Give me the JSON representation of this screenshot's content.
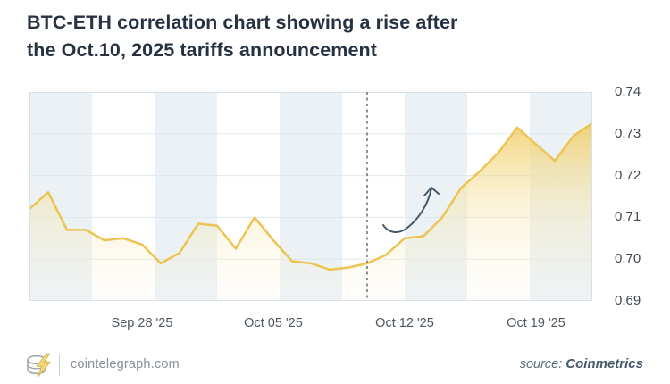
{
  "header": {
    "title_line1": "BTC-ETH correlation chart showing a rise after",
    "title_line2": "the Oct.10, 2025 tariffs announcement"
  },
  "chart_data": {
    "type": "area",
    "title": "BTC-ETH correlation chart showing a rise after the Oct.10, 2025 tariffs announcement",
    "series_name": "BTC-ETH correlation",
    "x": [
      "Sep 22 '25",
      "Sep 23 '25",
      "Sep 24 '25",
      "Sep 25 '25",
      "Sep 26 '25",
      "Sep 27 '25",
      "Sep 28 '25",
      "Sep 29 '25",
      "Sep 30 '25",
      "Oct 01 '25",
      "Oct 02 '25",
      "Oct 03 '25",
      "Oct 04 '25",
      "Oct 05 '25",
      "Oct 06 '25",
      "Oct 07 '25",
      "Oct 08 '25",
      "Oct 09 '25",
      "Oct 10 '25",
      "Oct 11 '25",
      "Oct 12 '25",
      "Oct 13 '25",
      "Oct 14 '25",
      "Oct 15 '25",
      "Oct 16 '25",
      "Oct 17 '25",
      "Oct 18 '25",
      "Oct 19 '25",
      "Oct 20 '25",
      "Oct 21 '25",
      "Oct 22 '25"
    ],
    "values": [
      0.712,
      0.716,
      0.707,
      0.707,
      0.7045,
      0.705,
      0.7035,
      0.699,
      0.7015,
      0.7085,
      0.708,
      0.7025,
      0.71,
      0.7045,
      0.6995,
      0.699,
      0.6975,
      0.698,
      0.699,
      0.701,
      0.705,
      0.7055,
      0.71,
      0.717,
      0.721,
      0.7255,
      0.7315,
      0.7275,
      0.7235,
      0.7295,
      0.7325
    ],
    "ylim": [
      0.69,
      0.74
    ],
    "y_ticks": [
      0.69,
      0.7,
      0.71,
      0.72,
      0.73,
      0.74
    ],
    "x_ticks": [
      {
        "label": "Sep 28 '25",
        "index": 6
      },
      {
        "label": "Oct 05 '25",
        "index": 13
      },
      {
        "label": "Oct 12 '25",
        "index": 20
      },
      {
        "label": "Oct 19 '25",
        "index": 27
      }
    ],
    "annotation": {
      "type": "dashed-vertical-line-with-rise-arrow",
      "event": "Oct. 10, 2025 tariffs announcement",
      "index": 18
    },
    "legend": "none",
    "grid": "horizontal",
    "num_stripes": 9,
    "colors": {
      "line": "#EDC351",
      "fill_top": "#F0C752",
      "stripe": "#EBF1F5",
      "grid": "#DFE8ED",
      "border": "#D8E1E8",
      "dashed_line": "#5B6470",
      "arrow": "#45586B",
      "title_text": "#273142",
      "tick_text": "#4E565E"
    }
  },
  "footer": {
    "site": "cointelegraph.com",
    "source_prefix": "source: ",
    "source_name": "Coinmetrics",
    "logo": "cointelegraph-coin-bolt-icon"
  }
}
